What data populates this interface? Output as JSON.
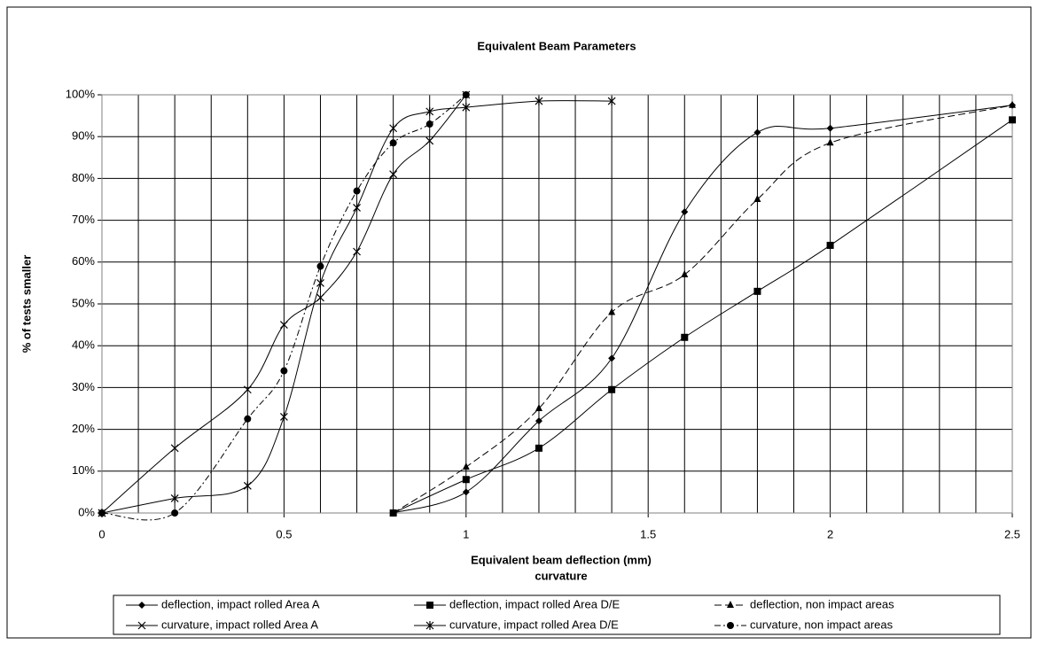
{
  "chart_data": {
    "type": "line",
    "title": "Equivalent Beam Parameters",
    "xlabel": [
      "Equivalent beam deflection (mm)",
      "curvature"
    ],
    "ylabel": "% of tests smaller",
    "xlim": [
      0,
      2.5
    ],
    "ylim": [
      0,
      100
    ],
    "xticks": [
      0,
      0.5,
      1,
      1.5,
      2,
      2.5
    ],
    "xminor_ticks": [
      0.1,
      0.2,
      0.3,
      0.4,
      0.6,
      0.7,
      0.8,
      0.9,
      1.1,
      1.2,
      1.3,
      1.4,
      1.6,
      1.7,
      1.8,
      1.9,
      2.1,
      2.2,
      2.3,
      2.4
    ],
    "yticks": [
      {
        "value": 0,
        "label": "0%"
      },
      {
        "value": 10,
        "label": "10%"
      },
      {
        "value": 20,
        "label": "20%"
      },
      {
        "value": 30,
        "label": "30%"
      },
      {
        "value": 40,
        "label": "40%"
      },
      {
        "value": 50,
        "label": "50%"
      },
      {
        "value": 60,
        "label": "60%"
      },
      {
        "value": 70,
        "label": "70%"
      },
      {
        "value": 80,
        "label": "80%"
      },
      {
        "value": 90,
        "label": "90%"
      },
      {
        "value": 100,
        "label": "100%"
      }
    ],
    "grid": true,
    "legend": "bottom",
    "series": [
      {
        "name": "deflection, impact rolled Area A",
        "color": "#000000",
        "marker": "diamond",
        "line_style": "solid",
        "x": [
          0.8,
          1.0,
          1.2,
          1.4,
          1.6,
          1.8,
          2.0,
          2.5
        ],
        "values": [
          0,
          5,
          22,
          37,
          72,
          91,
          92,
          97.5
        ]
      },
      {
        "name": "deflection, impact rolled Area D/E",
        "color": "#000000",
        "marker": "square",
        "line_style": "solid",
        "x": [
          0.8,
          1.0,
          1.2,
          1.4,
          1.6,
          1.8,
          2.0,
          2.5
        ],
        "values": [
          0,
          8,
          15.5,
          29.5,
          42,
          53,
          64,
          94
        ]
      },
      {
        "name": "deflection, non impact areas",
        "color": "#000000",
        "marker": "triangle",
        "line_style": "dashed",
        "x": [
          0.8,
          1.0,
          1.2,
          1.4,
          1.6,
          1.8,
          2.0,
          2.5
        ],
        "values": [
          0,
          11,
          25,
          48,
          57,
          75,
          88.5,
          97.5
        ]
      },
      {
        "name": "curvature, impact rolled Area A",
        "color": "#000000",
        "marker": "x",
        "line_style": "solid",
        "x": [
          0,
          0.2,
          0.4,
          0.5,
          0.6,
          0.7,
          0.8,
          0.9,
          1.0
        ],
        "values": [
          0,
          15.5,
          29.5,
          45,
          51.5,
          62.5,
          81,
          89,
          100
        ]
      },
      {
        "name": "curvature, impact rolled Area D/E",
        "color": "#000000",
        "marker": "asterisk",
        "line_style": "solid",
        "x": [
          0,
          0.2,
          0.4,
          0.5,
          0.6,
          0.7,
          0.8,
          0.9,
          1.0,
          1.2,
          1.4
        ],
        "values": [
          0,
          3.5,
          6.5,
          23,
          55,
          73,
          92,
          96,
          97,
          98.5,
          98.5
        ]
      },
      {
        "name": "curvature, non impact areas",
        "color": "#000000",
        "marker": "circle",
        "line_style": "dashdot",
        "x": [
          0,
          0.2,
          0.4,
          0.5,
          0.6,
          0.7,
          0.8,
          0.9,
          1.0
        ],
        "values": [
          0,
          0,
          22.5,
          34,
          59,
          77,
          88.5,
          93,
          100
        ]
      }
    ]
  }
}
